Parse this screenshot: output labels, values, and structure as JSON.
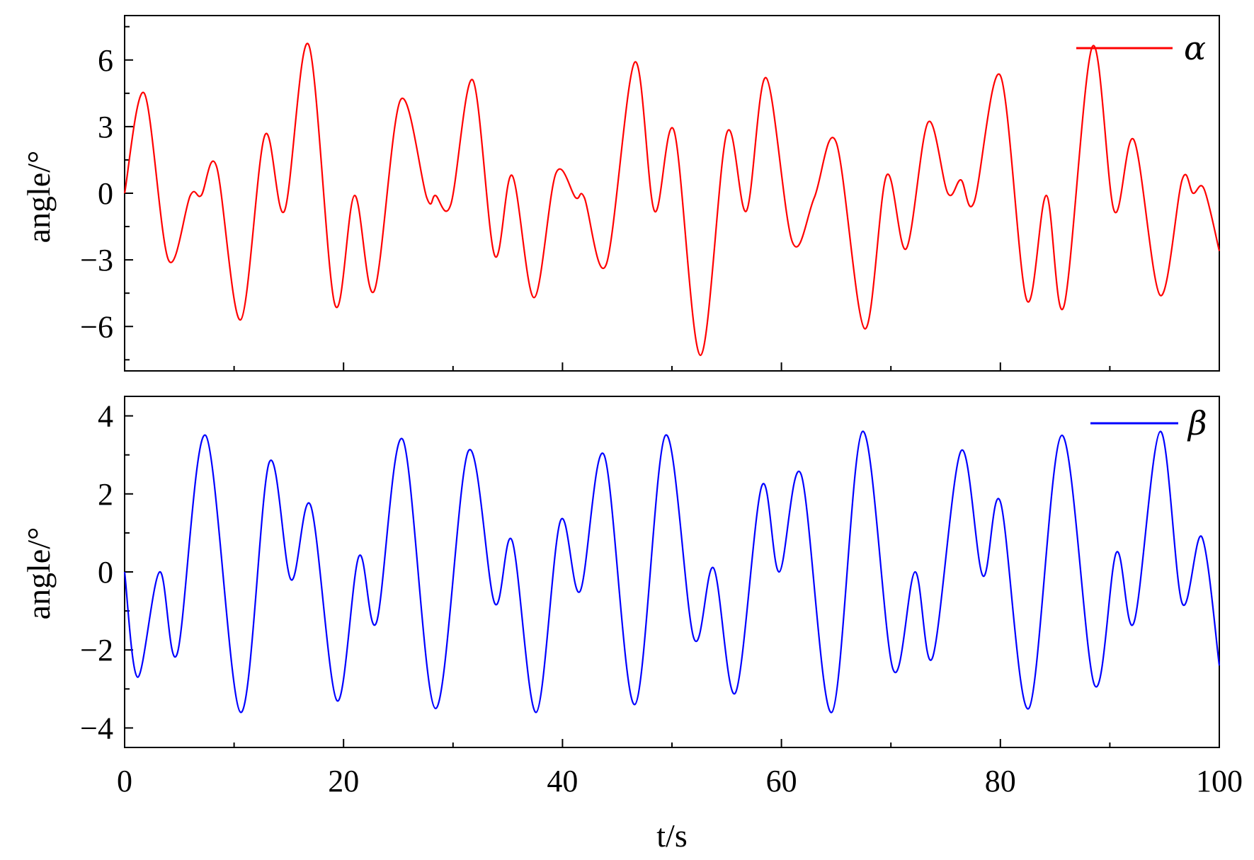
{
  "chart_data": [
    {
      "type": "line",
      "ylabel": "angle/°",
      "xlabel": "",
      "xlim": [
        0,
        100
      ],
      "ylim": [
        -8,
        8
      ],
      "xticks": [
        0,
        20,
        40,
        60,
        80,
        100
      ],
      "yticks": [
        -6,
        -3,
        0,
        3,
        6
      ],
      "ytick_labels": [
        "−6",
        "−3",
        "0",
        "3",
        "6"
      ],
      "legend": "top-right",
      "series": [
        {
          "name": "α",
          "color": "#ff0000",
          "x": [
            0,
            1.8,
            4.0,
            6.0,
            7.0,
            8.4,
            10.6,
            12.8,
            14.6,
            16.8,
            19.2,
            21.0,
            22.8,
            25.2,
            27.6,
            28.4,
            29.8,
            31.8,
            33.8,
            35.4,
            37.4,
            39.4,
            41.2,
            42.0,
            44.0,
            46.6,
            48.4,
            50.2,
            52.6,
            55.0,
            56.8,
            58.6,
            61.0,
            63.0,
            65.0,
            67.6,
            69.6,
            71.4,
            73.4,
            75.2,
            76.4,
            77.6,
            80.0,
            82.4,
            84.2,
            85.8,
            88.4,
            90.4,
            92.2,
            94.6,
            96.6,
            97.6,
            98.6,
            100
          ],
          "values": [
            0,
            4.5,
            -3.0,
            -0.1,
            -0.1,
            1.2,
            -5.7,
            2.6,
            -0.8,
            6.7,
            -5.0,
            -0.1,
            -4.4,
            4.2,
            -0.2,
            -0.1,
            -0.5,
            5.1,
            -2.8,
            0.8,
            -4.7,
            0.9,
            -0.2,
            -0.2,
            -3.2,
            5.9,
            -0.8,
            2.8,
            -7.3,
            2.7,
            -0.8,
            5.2,
            -2.2,
            -0.2,
            2.3,
            -6.1,
            0.8,
            -2.5,
            3.2,
            0,
            0.6,
            -0.4,
            5.3,
            -4.8,
            -0.1,
            -5.1,
            6.6,
            -0.8,
            2.4,
            -4.6,
            0.6,
            0,
            0.2,
            -2.6
          ]
        }
      ]
    },
    {
      "type": "line",
      "ylabel": "angle/°",
      "xlabel": "t/s",
      "xlim": [
        0,
        100
      ],
      "ylim": [
        -4.5,
        4.5
      ],
      "xticks": [
        0,
        20,
        40,
        60,
        80,
        100
      ],
      "xtick_labels": [
        "0",
        "20",
        "40",
        "60",
        "80",
        "100"
      ],
      "yticks": [
        -4,
        -2,
        0,
        2,
        4
      ],
      "ytick_labels": [
        "−4",
        "−2",
        "0",
        "2",
        "4"
      ],
      "legend": "top-right",
      "series": [
        {
          "name": "β",
          "color": "#0000ff",
          "x": [
            0,
            1.2,
            3.2,
            4.8,
            7.4,
            10.6,
            13.2,
            15.2,
            17.0,
            19.4,
            21.4,
            23.0,
            25.4,
            28.4,
            31.4,
            33.8,
            35.4,
            37.6,
            39.8,
            41.6,
            43.8,
            46.6,
            49.4,
            52.0,
            53.8,
            55.8,
            58.2,
            59.8,
            61.8,
            64.6,
            67.4,
            70.2,
            72.2,
            73.8,
            76.4,
            78.4,
            80.0,
            82.6,
            85.6,
            88.6,
            90.6,
            92.2,
            94.6,
            96.6,
            98.4,
            100
          ],
          "values": [
            0,
            -2.7,
            0,
            -2.1,
            3.5,
            -3.6,
            2.8,
            -0.2,
            1.7,
            -3.3,
            0.4,
            -1.3,
            3.4,
            -3.5,
            3.1,
            -0.8,
            0.8,
            -3.6,
            1.3,
            -0.5,
            3.0,
            -3.4,
            3.5,
            -1.7,
            0.1,
            -3.1,
            2.2,
            0,
            2.5,
            -3.6,
            3.6,
            -2.5,
            0,
            -2.2,
            3.1,
            -0.1,
            1.8,
            -3.5,
            3.5,
            -2.9,
            0.5,
            -1.3,
            3.6,
            -0.8,
            0.9,
            -2.4
          ]
        }
      ]
    }
  ]
}
